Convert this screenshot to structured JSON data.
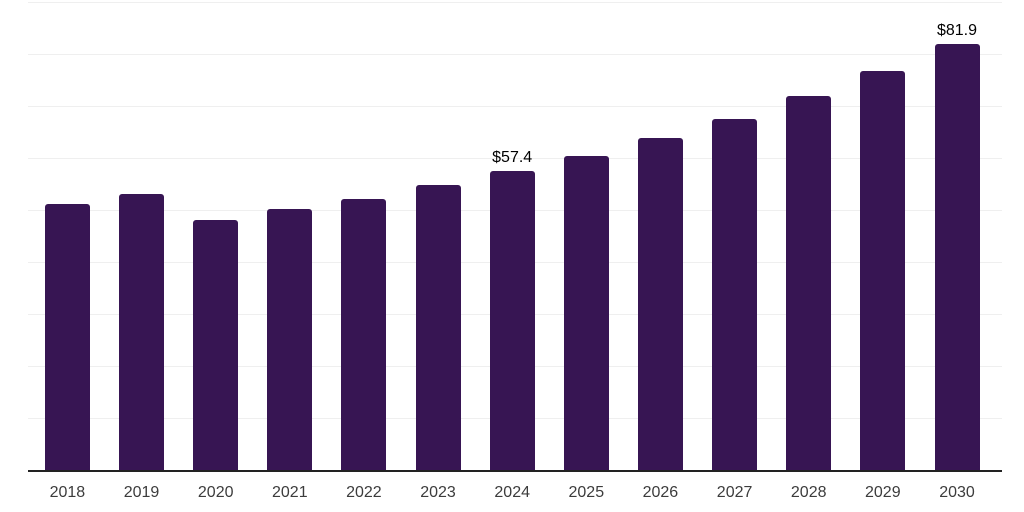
{
  "chart_data": {
    "type": "bar",
    "categories": [
      "2018",
      "2019",
      "2020",
      "2021",
      "2022",
      "2023",
      "2024",
      "2025",
      "2026",
      "2027",
      "2028",
      "2029",
      "2030"
    ],
    "values": [
      51.2,
      53.1,
      48.0,
      50.1,
      52.1,
      54.7,
      57.4,
      60.4,
      63.9,
      67.5,
      71.9,
      76.7,
      81.9
    ],
    "data_labels": {
      "2024": "$57.4",
      "2030": "$81.9"
    },
    "xlabel": "",
    "ylabel": "",
    "ylim": [
      0,
      90
    ],
    "gridline_step": 10,
    "grid": true,
    "legend": false,
    "colors": {
      "bar": "#371553",
      "gridline": "#efefef",
      "axis": "#222222",
      "tick_label": "#3c3c3c",
      "value_label": "#000000",
      "background": "#ffffff"
    }
  }
}
